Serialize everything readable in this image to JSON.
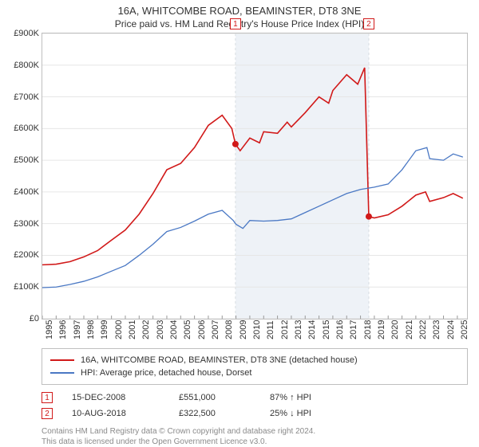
{
  "title": "16A, WHITCOMBE ROAD, BEAMINSTER, DT8 3NE",
  "subtitle": "Price paid vs. HM Land Registry's House Price Index (HPI)",
  "chart": {
    "type": "line",
    "background_color": "#ffffff",
    "grid_color": "#e6e6e6",
    "border_color": "#bfbfbf",
    "x_range": [
      1995,
      2025.7
    ],
    "y_range": [
      0,
      900
    ],
    "y_unit_prefix": "£",
    "y_unit_suffix": "K",
    "y_ticks": [
      0,
      100,
      200,
      300,
      400,
      500,
      600,
      700,
      800,
      900
    ],
    "x_ticks": [
      1995,
      1996,
      1997,
      1998,
      1999,
      2000,
      2001,
      2002,
      2003,
      2004,
      2005,
      2006,
      2007,
      2008,
      2009,
      2010,
      2011,
      2012,
      2013,
      2014,
      2015,
      2016,
      2017,
      2018,
      2019,
      2020,
      2021,
      2022,
      2023,
      2024,
      2025
    ],
    "shaded_band": {
      "x_from": 2008.96,
      "x_to": 2018.6,
      "color": "#eef2f7"
    },
    "shaded_band_lines_color": "#d9dde3",
    "series": [
      {
        "id": "property",
        "label": "16A, WHITCOMBE ROAD, BEAMINSTER, DT8 3NE (detached house)",
        "color": "#d11919",
        "line_width": 1.6,
        "points": [
          [
            1995,
            170
          ],
          [
            1996,
            172
          ],
          [
            1997,
            180
          ],
          [
            1998,
            195
          ],
          [
            1999,
            215
          ],
          [
            2000,
            248
          ],
          [
            2001,
            280
          ],
          [
            2002,
            330
          ],
          [
            2003,
            395
          ],
          [
            2004,
            470
          ],
          [
            2005,
            490
          ],
          [
            2006,
            540
          ],
          [
            2007,
            610
          ],
          [
            2008,
            642
          ],
          [
            2008.7,
            600
          ],
          [
            2008.96,
            551
          ],
          [
            2009.3,
            530
          ],
          [
            2010,
            570
          ],
          [
            2010.7,
            555
          ],
          [
            2011,
            590
          ],
          [
            2012,
            585
          ],
          [
            2012.7,
            620
          ],
          [
            2013,
            605
          ],
          [
            2014,
            650
          ],
          [
            2015,
            700
          ],
          [
            2015.7,
            680
          ],
          [
            2016,
            720
          ],
          [
            2017,
            770
          ],
          [
            2017.8,
            740
          ],
          [
            2018.3,
            792
          ],
          [
            2018.6,
            322.5
          ],
          [
            2019,
            318
          ],
          [
            2020,
            328
          ],
          [
            2021,
            355
          ],
          [
            2022,
            390
          ],
          [
            2022.7,
            400
          ],
          [
            2023,
            370
          ],
          [
            2024,
            382
          ],
          [
            2024.7,
            395
          ],
          [
            2025.4,
            380
          ]
        ]
      },
      {
        "id": "hpi",
        "label": "HPI: Average price, detached house, Dorset",
        "color": "#4a78c4",
        "line_width": 1.3,
        "points": [
          [
            1995,
            98
          ],
          [
            1996,
            100
          ],
          [
            1997,
            108
          ],
          [
            1998,
            118
          ],
          [
            1999,
            132
          ],
          [
            2000,
            150
          ],
          [
            2001,
            168
          ],
          [
            2002,
            200
          ],
          [
            2003,
            235
          ],
          [
            2004,
            275
          ],
          [
            2005,
            288
          ],
          [
            2006,
            308
          ],
          [
            2007,
            330
          ],
          [
            2008,
            342
          ],
          [
            2008.8,
            310
          ],
          [
            2009,
            298
          ],
          [
            2009.5,
            285
          ],
          [
            2010,
            310
          ],
          [
            2011,
            308
          ],
          [
            2012,
            310
          ],
          [
            2013,
            315
          ],
          [
            2014,
            335
          ],
          [
            2015,
            355
          ],
          [
            2016,
            375
          ],
          [
            2017,
            395
          ],
          [
            2018,
            408
          ],
          [
            2019,
            415
          ],
          [
            2020,
            425
          ],
          [
            2021,
            470
          ],
          [
            2022,
            530
          ],
          [
            2022.8,
            540
          ],
          [
            2023,
            505
          ],
          [
            2024,
            500
          ],
          [
            2024.7,
            520
          ],
          [
            2025.4,
            510
          ]
        ]
      }
    ],
    "markers": [
      {
        "n": "1",
        "x": 2008.96,
        "y": 551
      },
      {
        "n": "2",
        "x": 2018.6,
        "y": 322.5
      }
    ]
  },
  "legend": {
    "items": [
      {
        "color": "#d11919",
        "label": "16A, WHITCOMBE ROAD, BEAMINSTER, DT8 3NE (detached house)"
      },
      {
        "color": "#4a78c4",
        "label": "HPI: Average price, detached house, Dorset"
      }
    ]
  },
  "transactions": [
    {
      "n": "1",
      "date": "15-DEC-2008",
      "price": "£551,000",
      "delta": "87% ↑ HPI"
    },
    {
      "n": "2",
      "date": "10-AUG-2018",
      "price": "£322,500",
      "delta": "25% ↓ HPI"
    }
  ],
  "footer_lines": [
    "Contains HM Land Registry data © Crown copyright and database right 2024.",
    "This data is licensed under the Open Government Licence v3.0."
  ]
}
